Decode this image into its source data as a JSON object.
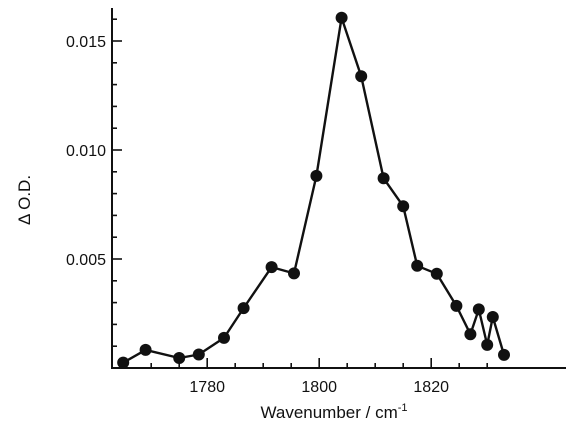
{
  "chart_data": {
    "type": "line",
    "title": "",
    "xlabel": "Wavenumber / cm",
    "xlabel_superscript": "-1",
    "ylabel": "Δ O.D.",
    "xlim": [
      1763,
      1834
    ],
    "ylim": [
      0.0,
      0.0162
    ],
    "xticks": [
      1780,
      1800,
      1820
    ],
    "xtick_labels": [
      "1780",
      "1800",
      "1820"
    ],
    "yticks": [
      0.005,
      0.01,
      0.015
    ],
    "ytick_labels": [
      "0.005",
      "0.010",
      "0.015"
    ],
    "x_minor_step": 5,
    "y_minor_step": 0.001,
    "grid": false,
    "legend": "none",
    "marker": "filled-circle",
    "colors": {
      "line": "#111111",
      "marker": "#111111",
      "axis": "#111111"
    },
    "series": [
      {
        "x": [
          1765,
          1769,
          1775,
          1778.5,
          1783,
          1786.5,
          1791.5,
          1795.5,
          1799.5,
          1804,
          1807.5,
          1811.5,
          1815,
          1817.5,
          1821,
          1824.5,
          1827,
          1828.5,
          1830,
          1831,
          1833
        ],
        "y": [
          0.00025,
          0.00083,
          0.00046,
          0.00062,
          0.00138,
          0.00275,
          0.00463,
          0.00434,
          0.00881,
          0.01607,
          0.01338,
          0.0087,
          0.00742,
          0.00469,
          0.00432,
          0.00285,
          0.00155,
          0.00269,
          0.00106,
          0.00234,
          0.0006
        ]
      }
    ]
  }
}
